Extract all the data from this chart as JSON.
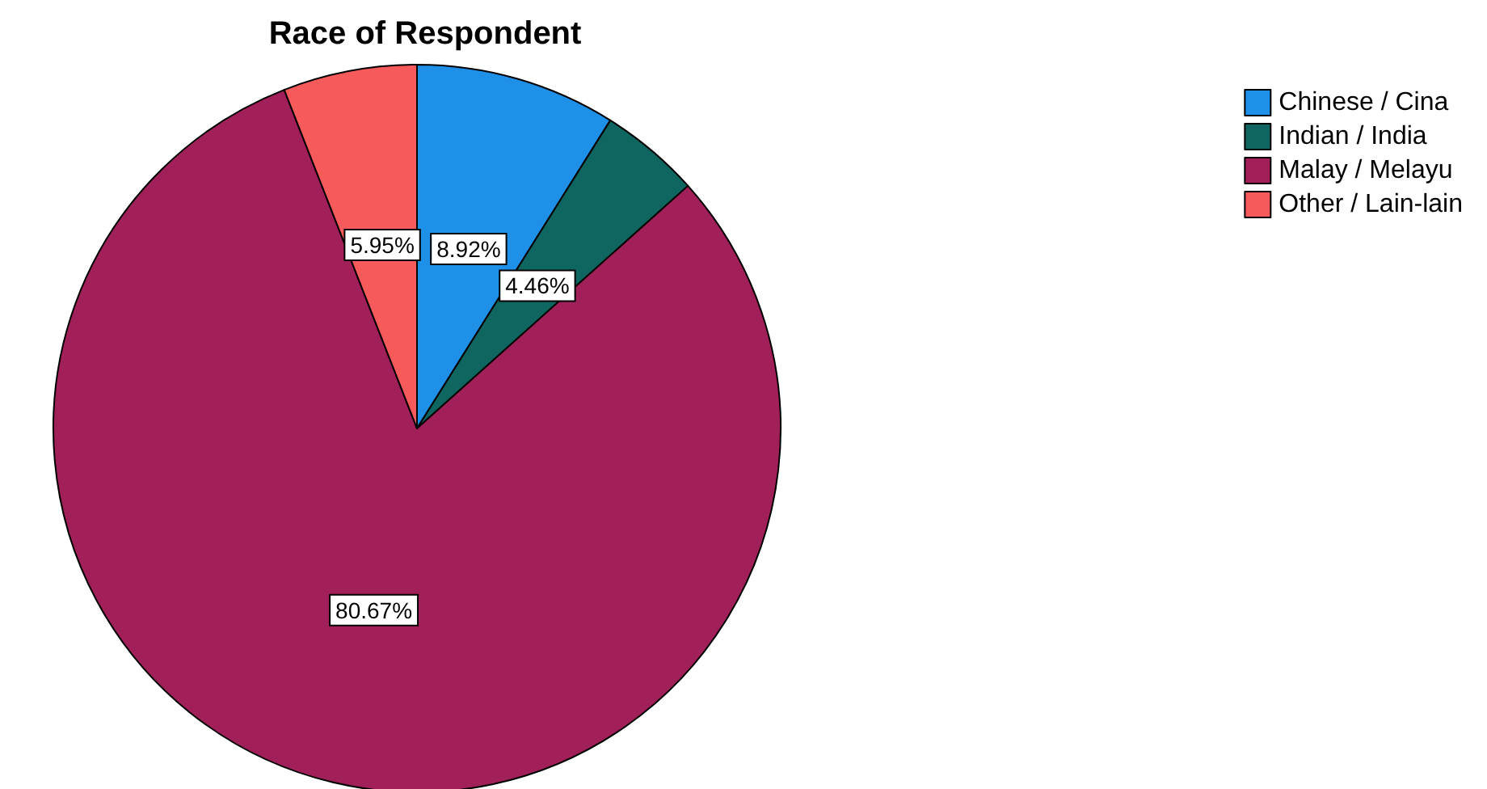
{
  "chart_data": {
    "type": "pie",
    "title": "Race of Respondent",
    "categories": [
      "Chinese / Cina",
      "Indian / India",
      "Malay / Melayu",
      "Other / Lain-lain"
    ],
    "values": [
      8.92,
      4.46,
      80.67,
      5.95
    ],
    "colors": [
      "#1e90e8",
      "#0f6660",
      "#a2205a",
      "#f65a5a"
    ],
    "value_labels": [
      "8.92%",
      "4.46%",
      "80.67%",
      "5.95%"
    ],
    "legend": "top right"
  }
}
